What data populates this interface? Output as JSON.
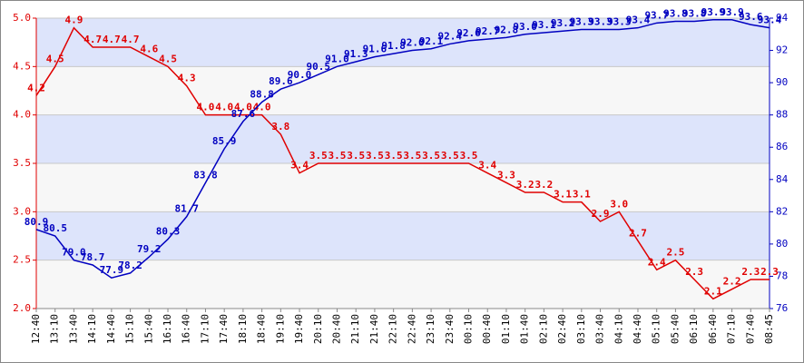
{
  "chart_data": {
    "type": "line",
    "x": [
      "12:40",
      "13:10",
      "13:40",
      "14:10",
      "14:40",
      "15:10",
      "15:40",
      "16:10",
      "16:40",
      "17:10",
      "17:40",
      "18:10",
      "18:40",
      "19:10",
      "19:40",
      "20:10",
      "20:40",
      "21:10",
      "21:40",
      "22:10",
      "22:40",
      "23:10",
      "23:40",
      "00:10",
      "00:40",
      "01:10",
      "01:40",
      "02:10",
      "02:40",
      "03:10",
      "03:40",
      "04:10",
      "04:40",
      "05:10",
      "05:40",
      "06:10",
      "06:40",
      "07:10",
      "07:40",
      "08:45"
    ],
    "ylim": [
      2,
      5
    ],
    "yticks": [
      {
        "value": 2,
        "label": "2.0"
      },
      2.5,
      {
        "value": 3,
        "label": "3.0"
      },
      3.5,
      {
        "value": 4,
        "label": "4.0"
      },
      4.5,
      {
        "value": 5,
        "label": "5.0"
      }
    ],
    "y2lim": [
      76,
      94
    ],
    "y2ticks": [
      76,
      78,
      80,
      82,
      84,
      86,
      88,
      90,
      92,
      94
    ],
    "grid": true,
    "series": [
      {
        "color": "#e00000",
        "values": [
          4.2,
          4.5,
          4.9,
          4.7,
          4.7,
          4.7,
          4.6,
          4.5,
          4.3,
          4,
          4,
          4,
          4,
          3.8,
          3.4,
          3.5,
          3.5,
          3.5,
          3.5,
          3.5,
          3.5,
          3.5,
          3.5,
          3.5,
          3.4,
          3.3,
          3.2,
          3.2,
          3.1,
          3.1,
          2.9,
          3,
          2.7,
          2.4,
          2.5,
          2.3,
          2.1,
          2.2,
          2.3,
          2.3
        ],
        "value_labels": [
          "4.2",
          "4.5",
          "4.9",
          "4.7",
          "4.7",
          "4.7",
          "4.6",
          "4.5",
          "4.3",
          "4.0",
          "4.0",
          "4.0",
          "4.0",
          "3.8",
          "3.4",
          "3.5",
          "3.5",
          "3.5",
          "3.5",
          "3.5",
          "3.5",
          "3.5",
          "3.5",
          "3.5",
          "3.4",
          "3.3",
          "3.2",
          "3.2",
          "3.1",
          "3.1",
          "2.9",
          "3.0",
          "2.7",
          "2.4",
          "2.5",
          "2.3",
          "2.1",
          "2.2",
          "2.3",
          "2.3"
        ]
      },
      {
        "color": "#0000c0",
        "axis": "y2",
        "values": [
          80.9,
          80.5,
          79,
          78.7,
          77.9,
          78.2,
          79.2,
          80.3,
          81.7,
          83.8,
          85.9,
          87.6,
          88.8,
          89.6,
          90,
          90.5,
          91,
          91.3,
          91.6,
          91.8,
          92,
          92.1,
          92.4,
          92.6,
          92.7,
          92.8,
          93,
          93.1,
          93.2,
          93.3,
          93.3,
          93.3,
          93.4,
          93.7,
          93.8,
          93.8,
          93.9,
          93.9,
          93.6,
          93.4
        ],
        "value_labels": [
          "80.9",
          "80.5",
          "79.0",
          "78.7",
          "77.9",
          "78.2",
          "79.2",
          "80.3",
          "81.7",
          "83.8",
          "85.9",
          "87.6",
          "88.8",
          "89.6",
          "90.0",
          "90.5",
          "91.0",
          "91.3",
          "91.6",
          "91.8",
          "92.0",
          "92.1",
          "92.4",
          "92.6",
          "92.7",
          "92.8",
          "93.0",
          "93.1",
          "93.2",
          "93.3",
          "93.3",
          "93.3",
          "93.4",
          "93.7",
          "93.8",
          "93.8",
          "93.9",
          "93.9",
          "93.6",
          "93.4"
        ]
      }
    ]
  }
}
